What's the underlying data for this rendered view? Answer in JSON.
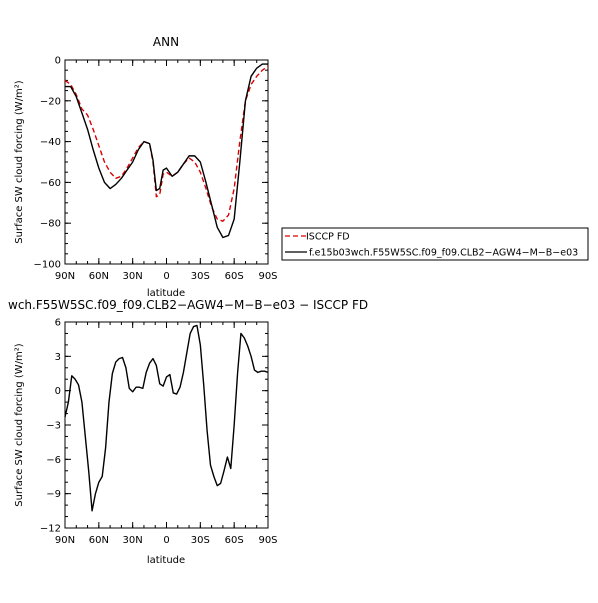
{
  "chart_data": [
    {
      "type": "line",
      "title": "ANN",
      "xlabel": "latitude",
      "ylabel": "Surface SW cloud forcing (W/m²)",
      "xlim": [
        -90,
        90
      ],
      "ylim": [
        -100,
        0
      ],
      "x_ticks": [
        {
          "value": -90,
          "label": "90N"
        },
        {
          "value": -60,
          "label": "60N"
        },
        {
          "value": -30,
          "label": "30N"
        },
        {
          "value": 0,
          "label": "0"
        },
        {
          "value": 30,
          "label": "30S"
        },
        {
          "value": 60,
          "label": "60S"
        },
        {
          "value": 90,
          "label": "90S"
        }
      ],
      "y_ticks": [
        {
          "value": 0,
          "label": "0"
        },
        {
          "value": -20,
          "label": "−20"
        },
        {
          "value": -40,
          "label": "−40"
        },
        {
          "value": -60,
          "label": "−60"
        },
        {
          "value": -80,
          "label": "−80"
        },
        {
          "value": -100,
          "label": "−100"
        }
      ],
      "legend_position": "right",
      "series": [
        {
          "name": "ISCCP FD",
          "color": "#dd0000",
          "dash": true,
          "x": [
            -90,
            -85,
            -80,
            -75,
            -70,
            -65,
            -60,
            -55,
            -50,
            -45,
            -40,
            -35,
            -30,
            -25,
            -20,
            -15,
            -12,
            -9,
            -6,
            -3,
            0,
            5,
            10,
            15,
            20,
            25,
            30,
            35,
            40,
            45,
            50,
            55,
            60,
            65,
            70,
            75,
            80,
            85,
            90
          ],
          "y": [
            -10,
            -12,
            -17,
            -24,
            -27,
            -34,
            -42,
            -50,
            -55,
            -58,
            -57,
            -53,
            -48,
            -43,
            -40,
            -41,
            -50,
            -67,
            -66,
            -56,
            -55,
            -57,
            -55,
            -51,
            -48,
            -50,
            -55,
            -63,
            -72,
            -78,
            -79,
            -76,
            -63,
            -40,
            -20,
            -12,
            -8,
            -5,
            -3
          ]
        },
        {
          "name": "f.e15b03wch.F55W5SC.f09_f09.CLB2−AGW4−M−B−e03",
          "color": "#000000",
          "dash": false,
          "x": [
            -90,
            -85,
            -80,
            -75,
            -70,
            -65,
            -60,
            -55,
            -50,
            -45,
            -40,
            -35,
            -30,
            -25,
            -20,
            -15,
            -12,
            -9,
            -6,
            -3,
            0,
            5,
            10,
            15,
            20,
            25,
            30,
            35,
            40,
            45,
            50,
            55,
            60,
            65,
            70,
            75,
            80,
            85,
            90
          ],
          "y": [
            -13,
            -13,
            -18,
            -26,
            -34,
            -44,
            -53,
            -60,
            -63,
            -61,
            -58,
            -54,
            -50,
            -44,
            -40,
            -41,
            -49,
            -64,
            -63,
            -54,
            -53,
            -57,
            -55,
            -51,
            -47,
            -47,
            -50,
            -60,
            -71,
            -82,
            -87,
            -86,
            -78,
            -50,
            -20,
            -8,
            -4,
            -2,
            -2
          ]
        }
      ]
    },
    {
      "type": "line",
      "title": "wch.F55W5SC.f09_f09.CLB2−AGW4−M−B−e03 − ISCCP FD",
      "xlabel": "latitude",
      "ylabel": "Surface SW cloud forcing (W/m²)",
      "xlim": [
        -90,
        90
      ],
      "ylim": [
        -12,
        6
      ],
      "x_ticks": [
        {
          "value": -90,
          "label": "90N"
        },
        {
          "value": -60,
          "label": "60N"
        },
        {
          "value": -30,
          "label": "30N"
        },
        {
          "value": 0,
          "label": "0"
        },
        {
          "value": 30,
          "label": "30S"
        },
        {
          "value": 60,
          "label": "60S"
        },
        {
          "value": 90,
          "label": "90S"
        }
      ],
      "y_ticks": [
        {
          "value": 6,
          "label": "6"
        },
        {
          "value": 3,
          "label": "3"
        },
        {
          "value": 0,
          "label": "0"
        },
        {
          "value": -3,
          "label": "−3"
        },
        {
          "value": -6,
          "label": "−6"
        },
        {
          "value": -9,
          "label": "−9"
        },
        {
          "value": -12,
          "label": "−12"
        }
      ],
      "series": [
        {
          "color": "#000000",
          "dash": false,
          "x": [
            -90,
            -87,
            -84,
            -81,
            -78,
            -75,
            -72,
            -69,
            -66,
            -63,
            -60,
            -57,
            -54,
            -51,
            -48,
            -45,
            -42,
            -39,
            -36,
            -33,
            -30,
            -27,
            -24,
            -21,
            -18,
            -15,
            -12,
            -9,
            -6,
            -3,
            0,
            3,
            6,
            9,
            12,
            15,
            18,
            21,
            24,
            27,
            30,
            33,
            36,
            39,
            42,
            45,
            48,
            51,
            54,
            57,
            60,
            63,
            66,
            69,
            72,
            75,
            78,
            81,
            84,
            87,
            90
          ],
          "y": [
            -2.3,
            -1,
            1.3,
            1,
            0.5,
            -1,
            -4,
            -7,
            -10.5,
            -9,
            -8,
            -7.5,
            -5,
            -1,
            1.5,
            2.5,
            2.8,
            2.9,
            2,
            0.2,
            -0.1,
            0.3,
            0.3,
            0.2,
            1.6,
            2.4,
            2.8,
            2.2,
            0.6,
            0.4,
            1.2,
            1.4,
            -0.2,
            -0.3,
            0.3,
            1.6,
            3.3,
            5,
            5.6,
            5.7,
            4,
            0.5,
            -3.5,
            -6.5,
            -7.5,
            -8.3,
            -8.1,
            -7,
            -5.8,
            -6.8,
            -3,
            1.5,
            5,
            4.6,
            3.9,
            3,
            1.8,
            1.6,
            1.7,
            1.7,
            1.6
          ]
        }
      ]
    }
  ],
  "legend": {
    "entries": [
      {
        "label": "ISCCP FD"
      },
      {
        "label": "f.e15b03wch.F55W5SC.f09_f09.CLB2−AGW4−M−B−e03"
      }
    ]
  }
}
